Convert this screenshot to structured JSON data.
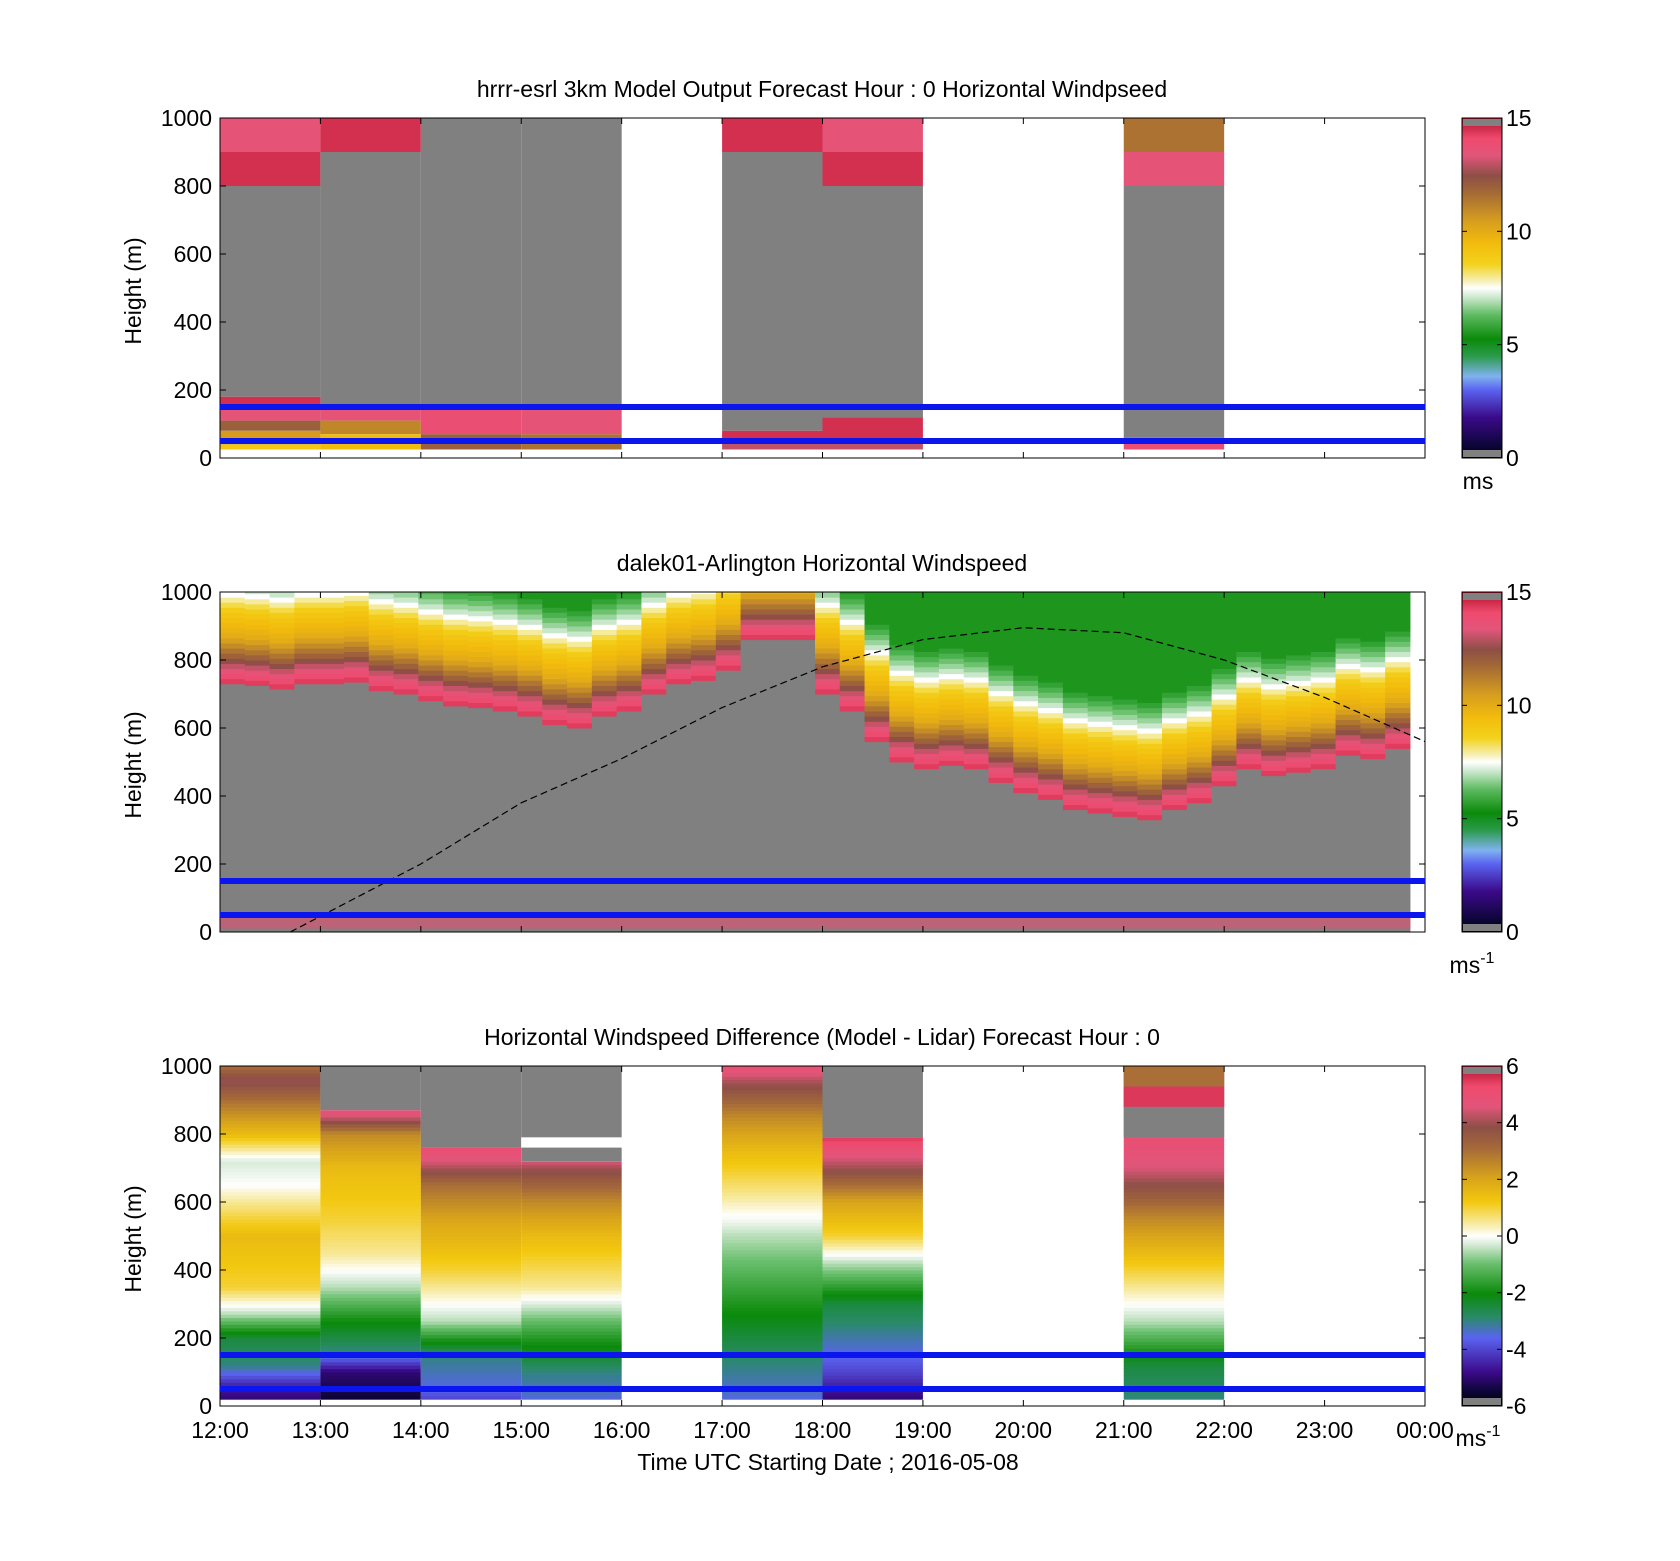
{
  "figure": {
    "xlabel": "Time UTC  Starting Date ; 2016-05-08"
  },
  "chart_data": [
    {
      "type": "heatmap",
      "title": "hrrr-esrl 3km Model Output   Forecast Hour : 0 Horizontal Windpseed",
      "ylabel": "Height (m)",
      "ylim": [
        0,
        1000
      ],
      "yticks": [
        "0",
        "200",
        "400",
        "600",
        "800",
        "1000"
      ],
      "x_hours": 12,
      "colorbar": {
        "range": [
          0,
          15
        ],
        "ticks": [
          "0",
          "5",
          "10",
          "15"
        ],
        "unit": "ms",
        "unit_sup": ""
      },
      "reference_lines_m": [
        50,
        150
      ],
      "cells": [
        {
          "x": [
            0,
            1
          ],
          "y": [
            900,
            1000
          ],
          "v": 13.5
        },
        {
          "x": [
            0,
            1
          ],
          "y": [
            800,
            900
          ],
          "v": 14.5
        },
        {
          "x": [
            0,
            1
          ],
          "y": [
            180,
            800
          ],
          "v": "missing"
        },
        {
          "x": [
            0,
            1
          ],
          "y": [
            150,
            180
          ],
          "v": 14.5
        },
        {
          "x": [
            0,
            1
          ],
          "y": [
            110,
            150
          ],
          "v": 13.5
        },
        {
          "x": [
            0,
            1
          ],
          "y": [
            80,
            110
          ],
          "v": 12
        },
        {
          "x": [
            0,
            1
          ],
          "y": [
            40,
            80
          ],
          "v": 10.5
        },
        {
          "x": [
            0,
            1
          ],
          "y": [
            25,
            40
          ],
          "v": 9
        },
        {
          "x": [
            1,
            2
          ],
          "y": [
            900,
            1000
          ],
          "v": 14.5
        },
        {
          "x": [
            1,
            2
          ],
          "y": [
            150,
            900
          ],
          "v": "missing"
        },
        {
          "x": [
            1,
            2
          ],
          "y": [
            110,
            150
          ],
          "v": 13.5
        },
        {
          "x": [
            1,
            2
          ],
          "y": [
            70,
            110
          ],
          "v": 11
        },
        {
          "x": [
            1,
            2
          ],
          "y": [
            25,
            70
          ],
          "v": 9.5
        },
        {
          "x": [
            2,
            3
          ],
          "y": [
            150,
            1000
          ],
          "v": "missing"
        },
        {
          "x": [
            2,
            3
          ],
          "y": [
            70,
            150
          ],
          "v": 13.8
        },
        {
          "x": [
            2,
            3
          ],
          "y": [
            25,
            70
          ],
          "v": 12
        },
        {
          "x": [
            3,
            4
          ],
          "y": [
            150,
            1000
          ],
          "v": "missing"
        },
        {
          "x": [
            3,
            4
          ],
          "y": [
            70,
            150
          ],
          "v": 13.5
        },
        {
          "x": [
            3,
            4
          ],
          "y": [
            25,
            70
          ],
          "v": 11.5
        },
        {
          "x": [
            5,
            6
          ],
          "y": [
            900,
            1000
          ],
          "v": 14.5
        },
        {
          "x": [
            5,
            6
          ],
          "y": [
            80,
            900
          ],
          "v": "missing"
        },
        {
          "x": [
            5,
            6
          ],
          "y": [
            50,
            80
          ],
          "v": 14.5
        },
        {
          "x": [
            5,
            6
          ],
          "y": [
            25,
            50
          ],
          "v": 13
        },
        {
          "x": [
            6,
            7
          ],
          "y": [
            900,
            1000
          ],
          "v": 13.5
        },
        {
          "x": [
            6,
            7
          ],
          "y": [
            800,
            900
          ],
          "v": 14.5
        },
        {
          "x": [
            6,
            7
          ],
          "y": [
            120,
            800
          ],
          "v": "missing"
        },
        {
          "x": [
            6,
            7
          ],
          "y": [
            50,
            120
          ],
          "v": 14.5
        },
        {
          "x": [
            6,
            7
          ],
          "y": [
            25,
            50
          ],
          "v": 13
        },
        {
          "x": [
            9,
            10
          ],
          "y": [
            900,
            1000
          ],
          "v": 11.5
        },
        {
          "x": [
            9,
            10
          ],
          "y": [
            800,
            900
          ],
          "v": 13.5
        },
        {
          "x": [
            9,
            10
          ],
          "y": [
            60,
            800
          ],
          "v": "missing"
        },
        {
          "x": [
            9,
            10
          ],
          "y": [
            25,
            60
          ],
          "v": 13.8
        }
      ]
    },
    {
      "type": "heatmap",
      "title": "dalek01-Arlington  Horizontal Windspeed",
      "ylabel": "Height (m)",
      "ylim": [
        0,
        1000
      ],
      "yticks": [
        "0",
        "200",
        "400",
        "600",
        "800",
        "1000"
      ],
      "x_hours": 12,
      "colorbar": {
        "range": [
          0,
          15
        ],
        "ticks": [
          "0",
          "5",
          "10",
          "15"
        ],
        "unit": "ms",
        "unit_sup": "-1"
      },
      "reference_lines_m": [
        50,
        150
      ],
      "data_end_hour": 11.85,
      "profile_columns": 48,
      "nodata_top_m": [
        730,
        725,
        715,
        730,
        730,
        735,
        710,
        700,
        680,
        665,
        660,
        650,
        635,
        610,
        600,
        635,
        650,
        700,
        730,
        740,
        770,
        860,
        860,
        860,
        700,
        650,
        560,
        500,
        480,
        490,
        480,
        440,
        410,
        390,
        360,
        350,
        340,
        330,
        360,
        380,
        430,
        480,
        460,
        470,
        480,
        520,
        510,
        540
      ],
      "band_profile": [
        {
          "offset_m": 0,
          "v": 14.5
        },
        {
          "offset_m": 40,
          "v": 13.5
        },
        {
          "offset_m": 80,
          "v": 12
        },
        {
          "offset_m": 140,
          "v": 10
        },
        {
          "offset_m": 210,
          "v": 9
        },
        {
          "offset_m": 280,
          "v": 7
        },
        {
          "offset_m": 350,
          "v": 5.5
        }
      ],
      "near_surface_speed": 14,
      "near_surface_top_m": 55,
      "boundary_layer_height": [
        {
          "t": 0.7,
          "h": 0
        },
        {
          "t": 2,
          "h": 200
        },
        {
          "t": 3,
          "h": 380
        },
        {
          "t": 4,
          "h": 510
        },
        {
          "t": 5,
          "h": 660
        },
        {
          "t": 6,
          "h": 780
        },
        {
          "t": 7,
          "h": 860
        },
        {
          "t": 8,
          "h": 895
        },
        {
          "t": 9,
          "h": 880
        },
        {
          "t": 10,
          "h": 800
        },
        {
          "t": 11,
          "h": 690
        },
        {
          "t": 12,
          "h": 560
        }
      ]
    },
    {
      "type": "heatmap",
      "title": "Horizontal Windspeed Difference (Model - Lidar) Forecast Hour : 0",
      "ylabel": "Height (m)",
      "ylim": [
        0,
        1000
      ],
      "yticks": [
        "0",
        "200",
        "400",
        "600",
        "800",
        "1000"
      ],
      "x_hours": 12,
      "xticks": [
        "12:00",
        "13:00",
        "14:00",
        "15:00",
        "16:00",
        "17:00",
        "18:00",
        "19:00",
        "20:00",
        "21:00",
        "22:00",
        "23:00",
        "00:00"
      ],
      "colorbar": {
        "range": [
          -6,
          6
        ],
        "ticks": [
          "-6",
          "-4",
          "-2",
          "0",
          "2",
          "4",
          "6"
        ],
        "unit": "ms",
        "unit_sup": "-1"
      },
      "reference_lines_m": [
        50,
        150
      ],
      "columns": [
        {
          "x": [
            0,
            1
          ],
          "stops": [
            {
              "h": 20,
              "v": -5
            },
            {
              "h": 60,
              "v": -4.5
            },
            {
              "h": 120,
              "v": -3
            },
            {
              "h": 200,
              "v": -2.5
            },
            {
              "h": 270,
              "v": -0.5
            },
            {
              "h": 350,
              "v": 1
            },
            {
              "h": 500,
              "v": 1.5
            },
            {
              "h": 650,
              "v": 0
            },
            {
              "h": 720,
              "v": -0.3
            },
            {
              "h": 800,
              "v": 1.5
            },
            {
              "h": 900,
              "v": 3
            },
            {
              "h": 960,
              "v": 4
            },
            {
              "h": 1000,
              "v": 3
            }
          ],
          "gray_above": 1000
        },
        {
          "x": [
            1,
            2
          ],
          "stops": [
            {
              "h": 20,
              "v": -5.5
            },
            {
              "h": 100,
              "v": -5
            },
            {
              "h": 160,
              "v": -3
            },
            {
              "h": 250,
              "v": -2
            },
            {
              "h": 350,
              "v": -0.5
            },
            {
              "h": 450,
              "v": 0.5
            },
            {
              "h": 550,
              "v": 1
            },
            {
              "h": 700,
              "v": 1.5
            },
            {
              "h": 800,
              "v": 2.5
            },
            {
              "h": 840,
              "v": 4
            },
            {
              "h": 870,
              "v": 5
            }
          ],
          "gray_above": 870
        },
        {
          "x": [
            2,
            3
          ],
          "stops": [
            {
              "h": 20,
              "v": -4
            },
            {
              "h": 60,
              "v": -3.5
            },
            {
              "h": 150,
              "v": -3
            },
            {
              "h": 250,
              "v": -0.5
            },
            {
              "h": 400,
              "v": 1
            },
            {
              "h": 550,
              "v": 2
            },
            {
              "h": 650,
              "v": 3
            },
            {
              "h": 720,
              "v": 4.5
            },
            {
              "h": 760,
              "v": 5
            }
          ],
          "gray_above": 760
        },
        {
          "x": [
            3,
            4
          ],
          "stops": [
            {
              "h": 20,
              "v": -3.5
            },
            {
              "h": 100,
              "v": -3
            },
            {
              "h": 220,
              "v": -1.5
            },
            {
              "h": 350,
              "v": 0.5
            },
            {
              "h": 500,
              "v": 1.5
            },
            {
              "h": 600,
              "v": 2.5
            },
            {
              "h": 700,
              "v": 4
            },
            {
              "h": 720,
              "v": 4.5
            }
          ],
          "gray_above": 720,
          "nodata_above": 790
        },
        {
          "x": [
            5,
            6
          ],
          "stops": [
            {
              "h": 20,
              "v": -3.5
            },
            {
              "h": 120,
              "v": -3
            },
            {
              "h": 200,
              "v": -2.5
            },
            {
              "h": 350,
              "v": -1.5
            },
            {
              "h": 500,
              "v": -0.5
            },
            {
              "h": 620,
              "v": 0.5
            },
            {
              "h": 750,
              "v": 1.5
            },
            {
              "h": 850,
              "v": 2.5
            },
            {
              "h": 950,
              "v": 4
            },
            {
              "h": 1000,
              "v": 5
            }
          ],
          "gray_above": 1000
        },
        {
          "x": [
            6,
            7
          ],
          "stops": [
            {
              "h": 20,
              "v": -5
            },
            {
              "h": 100,
              "v": -4
            },
            {
              "h": 160,
              "v": -3.5
            },
            {
              "h": 300,
              "v": -2.5
            },
            {
              "h": 420,
              "v": -0.5
            },
            {
              "h": 500,
              "v": 1
            },
            {
              "h": 600,
              "v": 2
            },
            {
              "h": 700,
              "v": 4
            },
            {
              "h": 760,
              "v": 5
            },
            {
              "h": 790,
              "v": 5.5
            }
          ],
          "gray_above": 790
        },
        {
          "x": [
            9,
            10
          ],
          "stops": [
            {
              "h": 20,
              "v": -3
            },
            {
              "h": 120,
              "v": -2.5
            },
            {
              "h": 250,
              "v": -0.5
            },
            {
              "h": 300,
              "v": 0
            },
            {
              "h": 400,
              "v": 1
            },
            {
              "h": 550,
              "v": 2.5
            },
            {
              "h": 700,
              "v": 4.5
            },
            {
              "h": 790,
              "v": 5
            }
          ],
          "gray_above": 790,
          "top_cells": [
            {
              "y": [
                880,
                940
              ],
              "v": 5.5
            },
            {
              "y": [
                940,
                1000
              ],
              "v": 3
            }
          ]
        }
      ]
    }
  ]
}
